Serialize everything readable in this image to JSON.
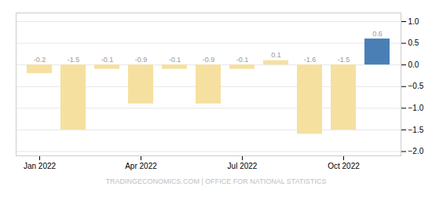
{
  "chart_data": {
    "type": "bar",
    "caption": "TRADINGECONOMICS.COM | OFFICE FOR NATIONAL STATISTICS",
    "categories": [
      "Jan 2022",
      null,
      null,
      "Apr 2022",
      null,
      null,
      "Jul 2022",
      null,
      null,
      "Oct 2022",
      null
    ],
    "values": [
      -0.2,
      -1.5,
      -0.1,
      -0.9,
      -0.1,
      -0.9,
      -0.1,
      0.1,
      -1.6,
      -1.5,
      0.6
    ],
    "colors": [
      "#f5e0a0",
      "#f5e0a0",
      "#f5e0a0",
      "#f5e0a0",
      "#f5e0a0",
      "#f5e0a0",
      "#f5e0a0",
      "#f5e0a0",
      "#f5e0a0",
      "#f5e0a0",
      "#4a7fb5"
    ],
    "ylim": [
      -2.1,
      1.2
    ],
    "yticks": [
      1,
      0.5,
      0,
      -0.5,
      -1,
      -1.5,
      -2
    ],
    "grid": true,
    "data_labels": true
  }
}
